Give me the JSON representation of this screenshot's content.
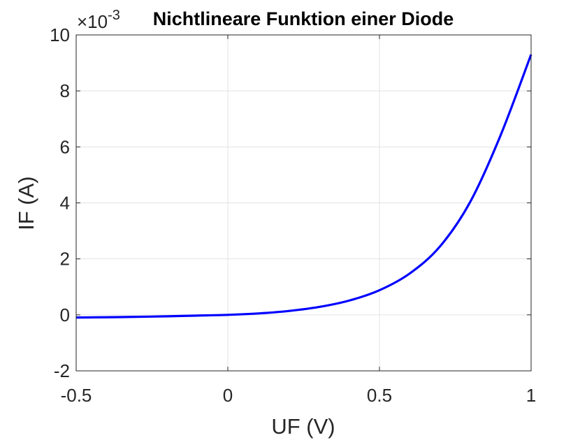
{
  "chart_data": {
    "type": "line",
    "title": "Nichtlineare Funktion einer Diode",
    "xlabel": "UF (V)",
    "ylabel": "IF (A)",
    "xlim": [
      -0.5,
      1
    ],
    "ylim": [
      -0.002,
      0.01
    ],
    "y_exponent_label": {
      "base": "×10",
      "power": "-3"
    },
    "xticks": [
      -0.5,
      0,
      0.5,
      1
    ],
    "xtick_labels": [
      "-0.5",
      "0",
      "0.5",
      "1"
    ],
    "yticks": [
      -0.002,
      0,
      0.002,
      0.004,
      0.006,
      0.008,
      0.01
    ],
    "ytick_labels": [
      "-2",
      "0",
      "2",
      "4",
      "6",
      "8",
      "10"
    ],
    "grid": true,
    "series": [
      {
        "color": "#0000ff",
        "x": [
          -0.5,
          -0.4,
          -0.3,
          -0.2,
          -0.1,
          0,
          0.1,
          0.2,
          0.3,
          0.4,
          0.5,
          0.6,
          0.7,
          0.8,
          0.9,
          1.0
        ],
        "y": [
          -9.5e-05,
          -8.5e-05,
          -7e-05,
          -5e-05,
          -2.5e-05,
          0,
          5e-05,
          0.000138,
          0.00028,
          0.00051,
          0.00088,
          0.00148,
          0.00245,
          0.00405,
          0.00643,
          0.0093
        ]
      }
    ]
  }
}
